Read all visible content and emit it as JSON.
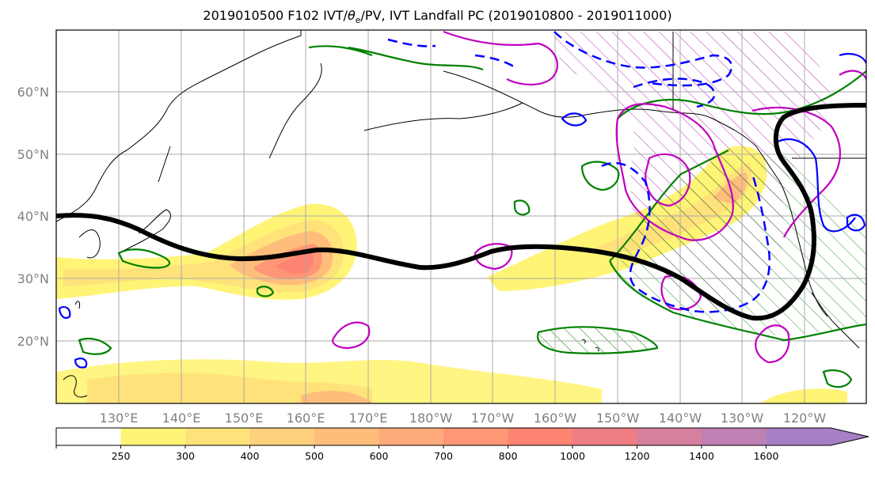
{
  "title": {
    "text_prefix": "2019010500 F102 IVT/",
    "theta": "θ",
    "sub_e": "e",
    "text_suffix": "/PV, IVT Landfall PC (2019010800 - 2019011000)"
  },
  "map": {
    "lat_labels": [
      "60°N",
      "50°N",
      "40°N",
      "30°N",
      "20°N"
    ],
    "lon_labels": [
      "130°E",
      "140°E",
      "150°E",
      "160°E",
      "170°E",
      "180°W",
      "170°W",
      "160°W",
      "150°W",
      "140°W",
      "130°W",
      "120°W"
    ],
    "lon_extent": [
      120,
      250
    ],
    "lat_extent": [
      10,
      70
    ],
    "gridlines": true
  },
  "colorbar": {
    "levels": [
      "250",
      "300",
      "400",
      "500",
      "600",
      "700",
      "800",
      "1000",
      "1200",
      "1400",
      "1600"
    ],
    "colors": [
      "#ffffff",
      "#fff475",
      "#ffe27a",
      "#ffd07d",
      "#ffbd7c",
      "#ffaa7a",
      "#ff9676",
      "#fd8372",
      "#ee7e84",
      "#d77f9f",
      "#bf80b4",
      "#a77fc6"
    ],
    "extend": "max"
  },
  "contour_colors": {
    "landfall_pc": "#000000",
    "theta_e": "#008000",
    "pv": "#c000c0",
    "dashed": "#0000ff"
  }
}
